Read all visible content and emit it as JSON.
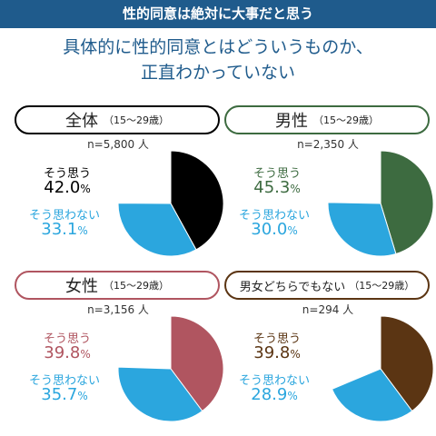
{
  "banner": "性的同意は絶対に大事だと思う",
  "headline": {
    "line1": "具体的に性的同意とはどういうものか、",
    "line2": "正直わかっていない"
  },
  "labels": {
    "yes": "そう思う",
    "no": "そう思わない",
    "percent": "%"
  },
  "colors": {
    "banner": "#1f5b8c",
    "no": "#2ba6de"
  },
  "chart_data": [
    {
      "type": "pie",
      "group": "全体",
      "age": "（15〜29歳）",
      "n": "n=5,800 人",
      "categories": [
        "そう思う",
        "そう思わない"
      ],
      "values": [
        42.0,
        33.1
      ],
      "value_labels": [
        "42.0",
        "33.1"
      ],
      "colors": [
        "#000000",
        "#2ba6de"
      ],
      "accent": "#000000"
    },
    {
      "type": "pie",
      "group": "男性",
      "age": "（15〜29歳）",
      "n": "n=2,350 人",
      "categories": [
        "そう思う",
        "そう思わない"
      ],
      "values": [
        45.3,
        30.0
      ],
      "value_labels": [
        "45.3",
        "30.0"
      ],
      "colors": [
        "#3d6b40",
        "#2ba6de"
      ],
      "accent": "#3d6b40"
    },
    {
      "type": "pie",
      "group": "女性",
      "age": "（15〜29歳）",
      "n": "n=3,156 人",
      "categories": [
        "そう思う",
        "そう思わない"
      ],
      "values": [
        39.8,
        35.7
      ],
      "value_labels": [
        "39.8",
        "35.7"
      ],
      "colors": [
        "#b05560",
        "#2ba6de"
      ],
      "accent": "#b05560"
    },
    {
      "type": "pie",
      "group": "男女どちらでもない",
      "age": "（15〜29歳）",
      "n": "n=294 人",
      "categories": [
        "そう思う",
        "そう思わない"
      ],
      "values": [
        39.8,
        28.9
      ],
      "value_labels": [
        "39.8",
        "28.9"
      ],
      "colors": [
        "#5b3513",
        "#2ba6de"
      ],
      "accent": "#5b3513"
    }
  ]
}
